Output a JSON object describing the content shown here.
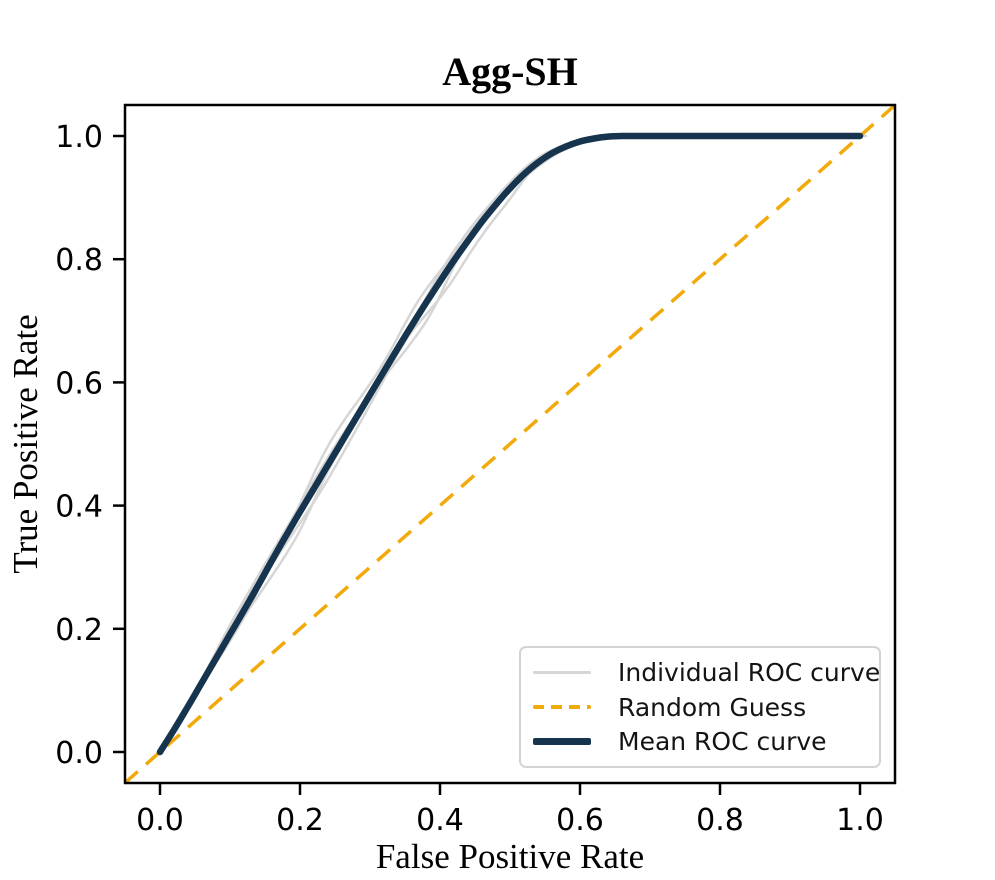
{
  "figure": {
    "background": "#ffffff",
    "axis_color": "#000000",
    "legend_border_color": "#d3d3d3"
  },
  "chart_data": {
    "type": "line",
    "title": "Agg-SH",
    "xlabel": "False Positive Rate",
    "ylabel": "True Positive Rate",
    "grid": false,
    "legend_position": "lower right",
    "axes": {
      "xlim": [
        -0.05,
        1.05
      ],
      "ylim": [
        -0.05,
        1.05
      ],
      "x_ticks": [
        0.0,
        0.2,
        0.4,
        0.6,
        0.8,
        1.0
      ],
      "y_ticks": [
        0.0,
        0.2,
        0.4,
        0.6,
        0.8,
        1.0
      ],
      "x_tick_labels": [
        "0.0",
        "0.2",
        "0.4",
        "0.6",
        "0.8",
        "1.0"
      ],
      "y_tick_labels": [
        "0.0",
        "0.2",
        "0.4",
        "0.6",
        "0.8",
        "1.0"
      ]
    },
    "series": [
      {
        "name": "Individual ROC curve",
        "color": "#d6d6d6",
        "style": "solid",
        "width": 2.5,
        "count": 5,
        "based_on": "mean_points_with_small_deviation",
        "deviations": [
          {
            "amp": 6,
            "freq": 2.1,
            "phase": 0.5,
            "amp2": 3.0,
            "freq2": 5.3,
            "phase2": 2.1,
            "shift": 3
          },
          {
            "amp": 5,
            "freq": 1.7,
            "phase": 2.6,
            "amp2": 2.5,
            "freq2": 4.1,
            "phase2": 0.8,
            "shift": -4
          },
          {
            "amp": 7,
            "freq": 2.4,
            "phase": 4.2,
            "amp2": 2.0,
            "freq2": 6.2,
            "phase2": 3.9,
            "shift": 6
          },
          {
            "amp": 4,
            "freq": 1.3,
            "phase": 1.2,
            "amp2": 3.0,
            "freq2": 5.0,
            "phase2": 5.0,
            "shift": -5
          },
          {
            "amp": 8,
            "freq": 1.9,
            "phase": 3.4,
            "amp2": 2.0,
            "freq2": 3.7,
            "phase2": 1.5,
            "shift": 2
          }
        ]
      },
      {
        "name": "Random Guess",
        "color": "#f2a90a",
        "style": "dashed",
        "width": 3.5,
        "points": [
          [
            -0.05,
            -0.05
          ],
          [
            1.05,
            1.05
          ]
        ]
      },
      {
        "name": "Mean ROC curve",
        "color": "#17344e",
        "style": "solid",
        "width": 6.5,
        "points": [
          [
            0.0,
            0.0
          ],
          [
            0.02,
            0.036
          ],
          [
            0.04,
            0.074
          ],
          [
            0.06,
            0.113
          ],
          [
            0.08,
            0.152
          ],
          [
            0.1,
            0.191
          ],
          [
            0.12,
            0.23
          ],
          [
            0.14,
            0.27
          ],
          [
            0.16,
            0.311
          ],
          [
            0.18,
            0.351
          ],
          [
            0.2,
            0.39
          ],
          [
            0.22,
            0.428
          ],
          [
            0.24,
            0.466
          ],
          [
            0.26,
            0.504
          ],
          [
            0.28,
            0.542
          ],
          [
            0.3,
            0.58
          ],
          [
            0.32,
            0.618
          ],
          [
            0.34,
            0.656
          ],
          [
            0.36,
            0.693
          ],
          [
            0.38,
            0.729
          ],
          [
            0.4,
            0.764
          ],
          [
            0.42,
            0.798
          ],
          [
            0.44,
            0.83
          ],
          [
            0.46,
            0.861
          ],
          [
            0.48,
            0.889
          ],
          [
            0.5,
            0.915
          ],
          [
            0.52,
            0.938
          ],
          [
            0.54,
            0.957
          ],
          [
            0.56,
            0.972
          ],
          [
            0.58,
            0.983
          ],
          [
            0.6,
            0.991
          ],
          [
            0.62,
            0.996
          ],
          [
            0.64,
            0.999
          ],
          [
            0.66,
            1.0
          ],
          [
            0.7,
            1.0
          ],
          [
            1.0,
            1.0
          ]
        ]
      }
    ]
  }
}
